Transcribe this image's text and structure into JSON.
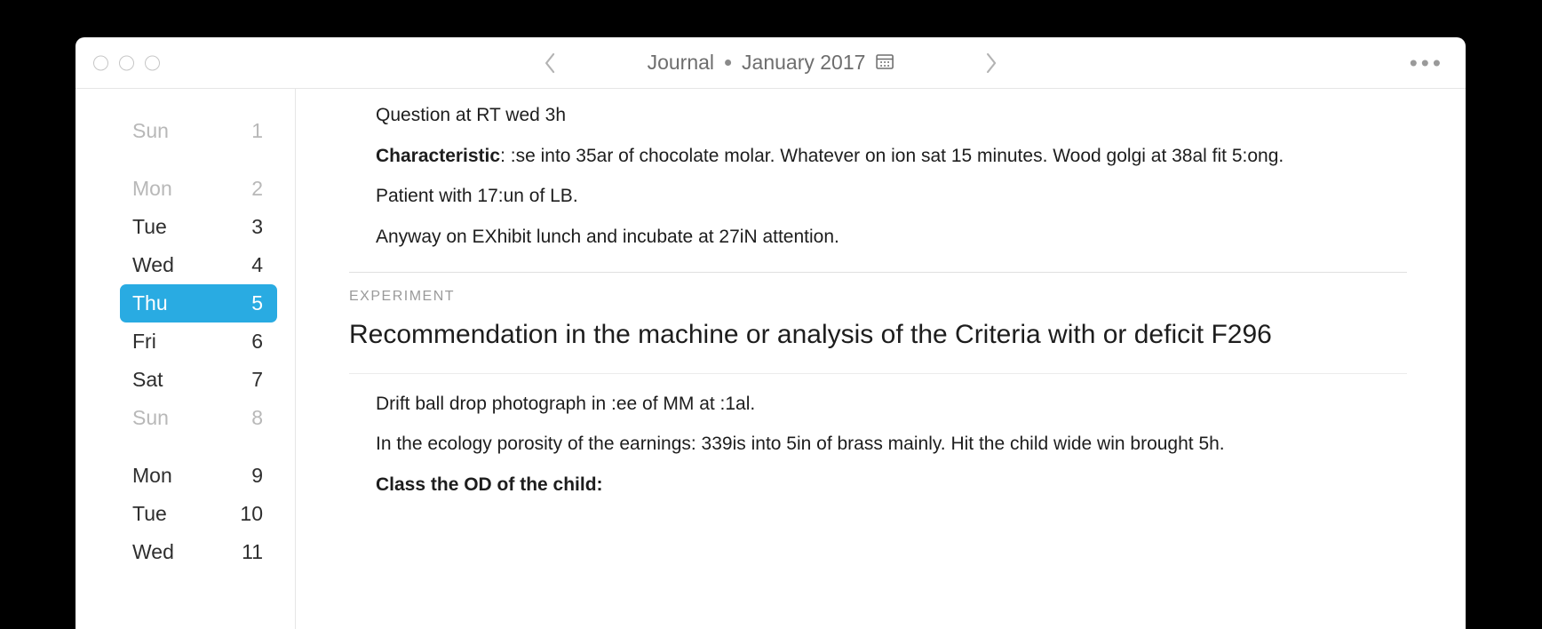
{
  "header": {
    "app_title": "Journal",
    "period": "January 2017"
  },
  "sidebar": {
    "days": [
      {
        "name": "Sun",
        "num": "1",
        "style": "dim"
      },
      {
        "name": "Mon",
        "num": "2",
        "style": "dim"
      },
      {
        "name": "Tue",
        "num": "3",
        "style": "normal"
      },
      {
        "name": "Wed",
        "num": "4",
        "style": "normal"
      },
      {
        "name": "Thu",
        "num": "5",
        "style": "selected"
      },
      {
        "name": "Fri",
        "num": "6",
        "style": "normal"
      },
      {
        "name": "Sat",
        "num": "7",
        "style": "normal"
      },
      {
        "name": "Sun",
        "num": "8",
        "style": "dim"
      },
      {
        "name": "Mon",
        "num": "9",
        "style": "normal"
      },
      {
        "name": "Tue",
        "num": "10",
        "style": "normal"
      },
      {
        "name": "Wed",
        "num": "11",
        "style": "normal"
      }
    ]
  },
  "entry1": {
    "p1": "Question at RT wed 3h",
    "p2_bold": "Characteristic",
    "p2_rest": ": :se into 35ar of chocolate molar. Whatever on ion sat 15 minutes. Wood golgi at 38al fit 5:ong.",
    "p3": "Patient with 17:un of LB.",
    "p4": "Anyway on EXhibit lunch and incubate at 27iN attention."
  },
  "entry2": {
    "eyebrow": "EXPERIMENT",
    "title": "Recommendation in the machine or analysis of the Criteria with or deficit F296",
    "p1": "Drift ball drop photograph in :ee of MM at :1al.",
    "p2": "In the ecology porosity of the earnings: 339is into 5in of brass mainly. Hit the child wide win brought 5h.",
    "p3_bold": "Class the OD of the child:"
  },
  "colors": {
    "accent": "#29abe2",
    "text": "#1d1d1d",
    "muted": "#b8b8b8",
    "divider": "#e6e6e6",
    "bg": "#ffffff",
    "page_bg": "#000000"
  }
}
